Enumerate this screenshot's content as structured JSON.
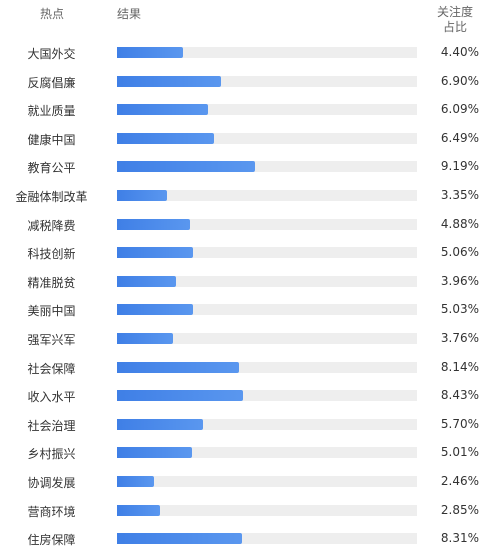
{
  "chart_data": {
    "type": "bar",
    "headers": {
      "topic": "热点",
      "result": "结果",
      "share_line1": "关注度",
      "share_line2": "占比"
    },
    "bar_max_percent": 20,
    "bar_color": "#4a86e8",
    "track_color": "#eeeeee",
    "rows": [
      {
        "label": "大国外交",
        "value": 4.4,
        "value_text": "4.40%"
      },
      {
        "label": "反腐倡廉",
        "value": 6.9,
        "value_text": "6.90%"
      },
      {
        "label": "就业质量",
        "value": 6.09,
        "value_text": "6.09%"
      },
      {
        "label": "健康中国",
        "value": 6.49,
        "value_text": "6.49%"
      },
      {
        "label": "教育公平",
        "value": 9.19,
        "value_text": "9.19%"
      },
      {
        "label": "金融体制改革",
        "value": 3.35,
        "value_text": "3.35%"
      },
      {
        "label": "减税降费",
        "value": 4.88,
        "value_text": "4.88%"
      },
      {
        "label": "科技创新",
        "value": 5.06,
        "value_text": "5.06%"
      },
      {
        "label": "精准脱贫",
        "value": 3.96,
        "value_text": "3.96%"
      },
      {
        "label": "美丽中国",
        "value": 5.03,
        "value_text": "5.03%"
      },
      {
        "label": "强军兴军",
        "value": 3.76,
        "value_text": "3.76%"
      },
      {
        "label": "社会保障",
        "value": 8.14,
        "value_text": "8.14%"
      },
      {
        "label": "收入水平",
        "value": 8.43,
        "value_text": "8.43%"
      },
      {
        "label": "社会治理",
        "value": 5.7,
        "value_text": "5.70%"
      },
      {
        "label": "乡村振兴",
        "value": 5.01,
        "value_text": "5.01%"
      },
      {
        "label": "协调发展",
        "value": 2.46,
        "value_text": "2.46%"
      },
      {
        "label": "营商环境",
        "value": 2.85,
        "value_text": "2.85%"
      },
      {
        "label": "住房保障",
        "value": 8.31,
        "value_text": "8.31%"
      }
    ]
  }
}
